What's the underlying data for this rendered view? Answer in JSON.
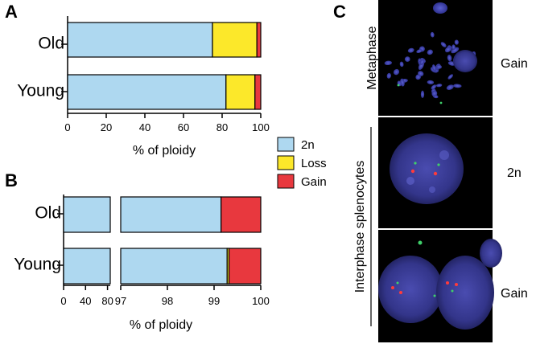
{
  "panels": {
    "a_letter": "A",
    "b_letter": "B",
    "c_letter": "C"
  },
  "chart_data": [
    {
      "type": "bar",
      "orientation": "horizontal",
      "stacked": true,
      "panel": "A",
      "categories": [
        "Old",
        "Young"
      ],
      "series": [
        {
          "name": "2n",
          "values": [
            75,
            82
          ]
        },
        {
          "name": "Loss",
          "values": [
            23,
            15
          ]
        },
        {
          "name": "Gain",
          "values": [
            2,
            3
          ]
        }
      ],
      "xlabel": "% of ploidy",
      "xlim": [
        0,
        100
      ],
      "xticks": [
        "0",
        "20",
        "40",
        "60",
        "80",
        "100"
      ],
      "legend_position": "right"
    },
    {
      "type": "bar",
      "orientation": "horizontal",
      "stacked": true,
      "panel": "B",
      "categories": [
        "Old",
        "Young"
      ],
      "series": [
        {
          "name": "2n",
          "values": [
            99.15,
            99.28
          ]
        },
        {
          "name": "Loss",
          "values": [
            0.0,
            0.04
          ]
        },
        {
          "name": "Gain",
          "values": [
            0.85,
            0.68
          ]
        }
      ],
      "xlabel": "% of ploidy",
      "axis_break": [
        85,
        97
      ],
      "xticks": [
        "0",
        "40",
        "80",
        "97",
        "98",
        "99",
        "100"
      ]
    }
  ],
  "legend": [
    {
      "label": "2n",
      "color": "#aed8f0"
    },
    {
      "label": "Loss",
      "color": "#fce82a"
    },
    {
      "label": "Gain",
      "color": "#e8383e"
    }
  ],
  "colors": {
    "n2": "#aed8f0",
    "loss": "#fce82a",
    "gain": "#e8383e",
    "micro_bg": "#000000",
    "nucleus": "#3c3e96"
  },
  "micrographs": {
    "metaphase_label": "Metaphase",
    "interphase_label": "Interphase splenocytes",
    "top_result": "Gain",
    "middle_result": "2n",
    "bottom_result": "Gain"
  }
}
